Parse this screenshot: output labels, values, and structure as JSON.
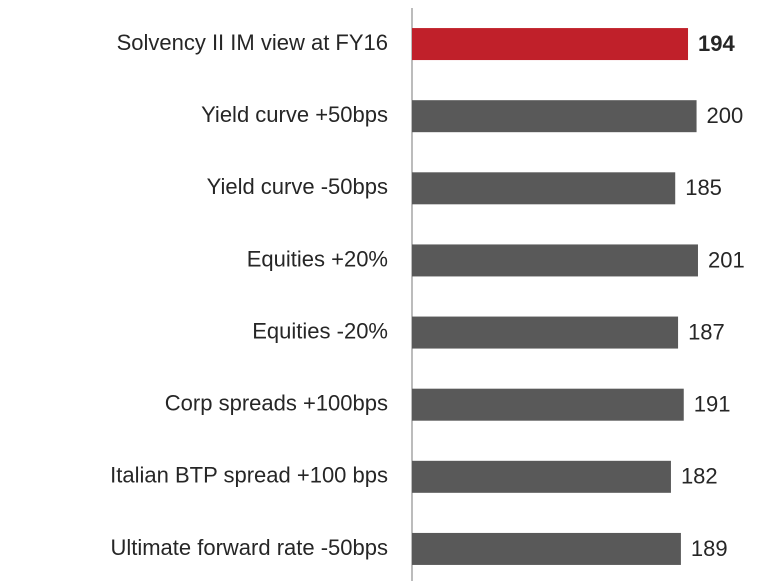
{
  "chart_data": {
    "type": "barh",
    "categories": [
      "Solvency II IM view at FY16",
      "Yield curve +50bps",
      "Yield curve -50bps",
      "Equities +20%",
      "Equities -20%",
      "Corp spreads +100bps",
      "Italian BTP spread +100 bps",
      "Ultimate forward rate -50bps"
    ],
    "values": [
      194,
      200,
      185,
      201,
      187,
      191,
      182,
      189
    ],
    "colors": [
      "#c0202a",
      "#595959",
      "#595959",
      "#595959",
      "#595959",
      "#595959",
      "#595959",
      "#595959"
    ],
    "xlim": [
      0,
      250
    ]
  }
}
